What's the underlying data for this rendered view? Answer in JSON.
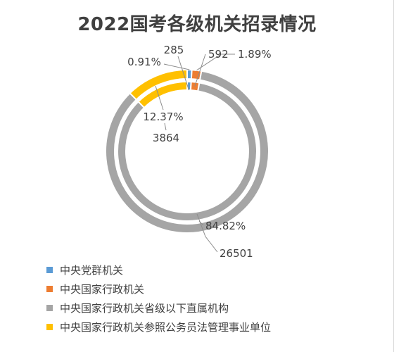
{
  "chart_data": {
    "type": "pie",
    "style": "double-ring-donut",
    "title": "2022国考各级机关招录情况",
    "legend_position": "bottom-left",
    "categories": [
      "中央党群机关",
      "中央国家行政机关",
      "中央国家行政机关省级以下直属机构",
      "中央国家行政机关参照公务员法管理事业单位"
    ],
    "values": [
      285,
      592,
      26501,
      3864
    ],
    "percent_labels": [
      "0.91%",
      "1.89%",
      "84.82%",
      "12.37%"
    ],
    "value_labels": [
      "285",
      "592",
      "26501",
      "3864"
    ],
    "colors": [
      "#5B9BD5",
      "#ED7D31",
      "#A5A5A5",
      "#FFC000"
    ]
  }
}
